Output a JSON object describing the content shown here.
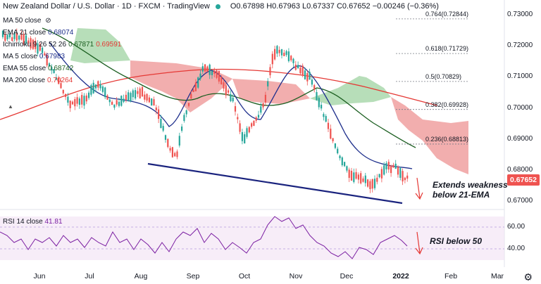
{
  "header": {
    "symbol": "New Zealand Dollar / U.S. Dollar · 1D · FXCM · TradingView",
    "open": "O0.67898",
    "high": "H0.67963",
    "low": "L0.67337",
    "close": "C0.67652",
    "change": "−0.00246 (−0.36%)"
  },
  "indicators": [
    {
      "label": "MA 50 close",
      "value": ""
    },
    {
      "label": "EMA 21 close",
      "value": "0.68074"
    },
    {
      "label": "Ichimoku 9 26 52 26",
      "value": "0.67871",
      "value2": "0.69591"
    },
    {
      "label": "MA 5 close",
      "value": "0.67983"
    },
    {
      "label": "EMA 55 close",
      "value": "0.68742"
    },
    {
      "label": "MA 200 close",
      "value": "0.70264"
    }
  ],
  "colors": {
    "ema21": "#1e2f8c",
    "ema55": "#1b5e20",
    "ma200": "#e53935",
    "up": "#26a69a",
    "down": "#ef5350",
    "trendline": "#1a237e",
    "arrow": "#e53935"
  },
  "price_axis": {
    "ticks": [
      "0.73000",
      "0.72000",
      "0.71000",
      "0.70000",
      "0.69000",
      "0.68000",
      "0.67000"
    ],
    "current": "0.67652"
  },
  "fib_levels": [
    {
      "ratio": "0.764",
      "price": "(0.72844)",
      "value": 0.72844
    },
    {
      "ratio": "0.618",
      "price": "(0.71729)",
      "value": 0.71729
    },
    {
      "ratio": "0.5",
      "price": "(0.70829)",
      "value": 0.70829
    },
    {
      "ratio": "0.382",
      "price": "(0.69928)",
      "value": 0.69928
    },
    {
      "ratio": "0.236",
      "price": "(0.68813)",
      "value": 0.68813
    }
  ],
  "time_axis": [
    "Jun",
    "Jul",
    "Aug",
    "Sep",
    "Oct",
    "Nov",
    "Dec",
    "2022",
    "Feb",
    "Mar"
  ],
  "annotations": {
    "main": [
      "Extends weakness",
      "below 21-EMA"
    ],
    "rsi": "RSI below 50"
  },
  "rsi": {
    "label": "RSI 14 close",
    "value": "41.81",
    "ticks": [
      "60.00",
      "40.00"
    ]
  }
}
